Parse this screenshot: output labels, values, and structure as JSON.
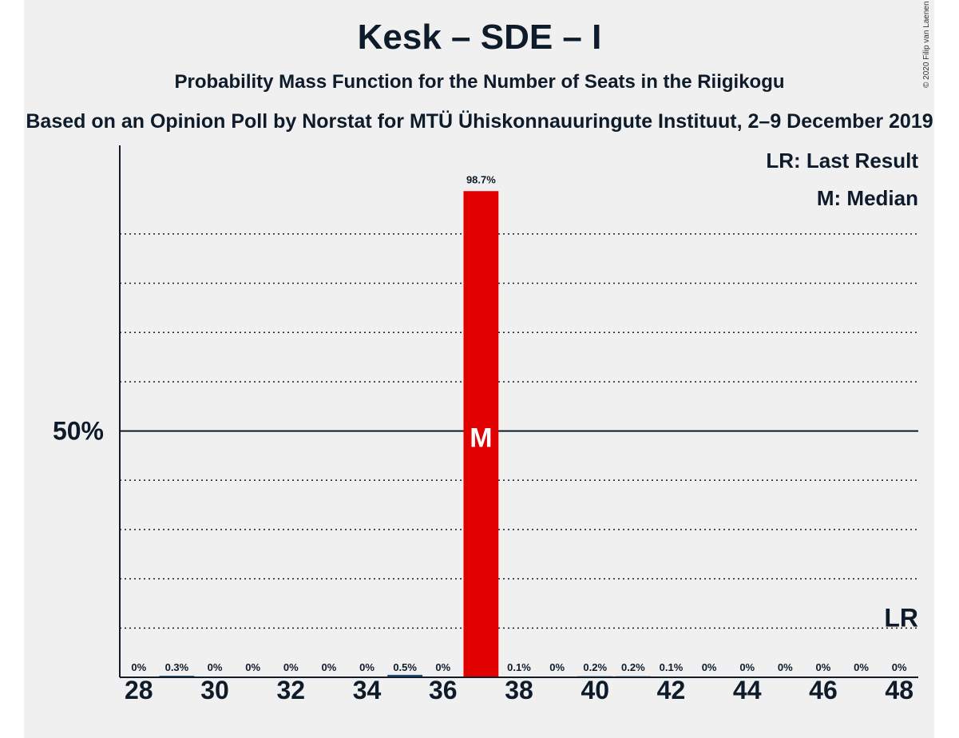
{
  "title": "Kesk – SDE – I",
  "subtitle": "Probability Mass Function for the Number of Seats in the Riigikogu",
  "source": "Based on an Opinion Poll by Norstat for MTÜ Ühiskonnauuringute Instituut, 2–9 December 2019",
  "copyright": "© 2020 Filip van Laenen",
  "legend": {
    "last_result": "LR: Last Result",
    "median": "M: Median"
  },
  "colors": {
    "bar_highlight": "#e00000",
    "bar_default": "#1f4e79",
    "text": "#0d1b2a"
  },
  "chart_data": {
    "type": "bar",
    "x": [
      28,
      29,
      30,
      31,
      32,
      33,
      34,
      35,
      36,
      37,
      38,
      39,
      40,
      41,
      42,
      43,
      44,
      45,
      46,
      47,
      48
    ],
    "values": [
      0,
      0.3,
      0,
      0,
      0,
      0,
      0,
      0.5,
      0,
      98.7,
      0.1,
      0,
      0.2,
      0.2,
      0.1,
      0,
      0,
      0,
      0,
      0,
      0
    ],
    "labels": [
      "0%",
      "0.3%",
      "0%",
      "0%",
      "0%",
      "0%",
      "0%",
      "0.5%",
      "0%",
      "98.7%",
      "0.1%",
      "0%",
      "0.2%",
      "0.2%",
      "0.1%",
      "0%",
      "0%",
      "0%",
      "0%",
      "0%",
      "0%"
    ],
    "x_ticks": [
      28,
      30,
      32,
      34,
      36,
      38,
      40,
      42,
      44,
      46,
      48
    ],
    "y_tick_label": "50%",
    "y_tick_value": 50,
    "ylim": [
      0,
      107.5
    ],
    "gridlines_dotted": [
      10,
      20,
      30,
      40,
      60,
      70,
      80,
      90
    ],
    "median": 37,
    "median_label": "M",
    "last_result": 48,
    "last_result_label": "LR"
  }
}
